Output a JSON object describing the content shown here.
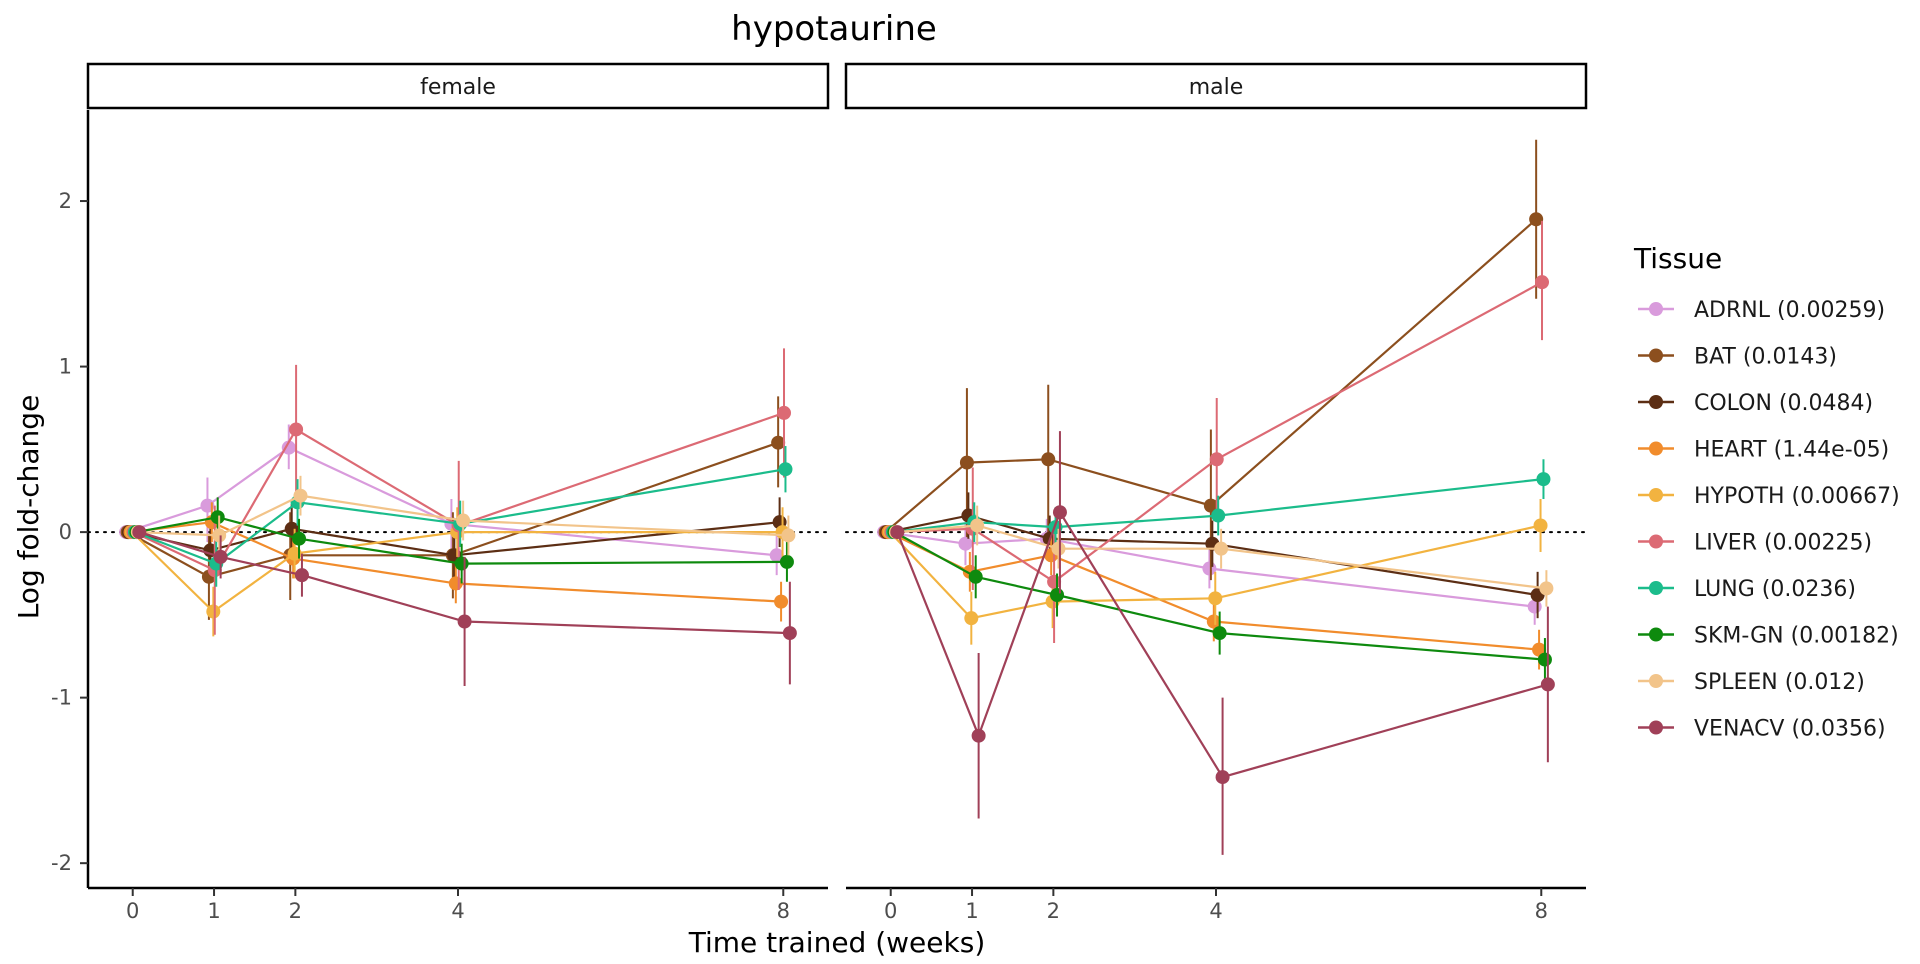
{
  "chart_data": {
    "type": "line",
    "title": "hypotaurine",
    "xlabel": "Time trained (weeks)",
    "ylabel": "Log fold-change",
    "x_ticks": [
      0,
      1,
      2,
      4,
      8
    ],
    "y_ticks": [
      -2,
      -1,
      0,
      1,
      2
    ],
    "xlim": [
      -0.55,
      8.55
    ],
    "ylim": [
      -2.15,
      2.55
    ],
    "reference_line": 0,
    "grid": false,
    "legend_title": "Tissue",
    "legend_position": "right",
    "series": [
      {
        "name": "ADRNL (0.00259)",
        "color": "#D99BDC",
        "female": [
          [
            0,
            0,
            0,
            0
          ],
          [
            1,
            0.16,
            -0.06,
            0.33
          ],
          [
            2,
            0.51,
            0.38,
            0.65
          ],
          [
            4,
            0.05,
            -0.1,
            0.2
          ],
          [
            8,
            -0.14,
            -0.26,
            -0.02
          ]
        ],
        "male": [
          [
            0,
            0,
            0,
            0
          ],
          [
            1,
            -0.07,
            -0.2,
            0.05
          ],
          [
            2,
            -0.04,
            -0.16,
            0.08
          ],
          [
            4,
            -0.22,
            -0.34,
            -0.1
          ],
          [
            8,
            -0.45,
            -0.56,
            -0.34
          ]
        ]
      },
      {
        "name": "BAT (0.0143)",
        "color": "#8C4F1E",
        "female": [
          [
            0,
            0,
            0,
            0
          ],
          [
            1,
            -0.27,
            -0.53,
            -0.02
          ],
          [
            2,
            -0.14,
            -0.41,
            0.12
          ],
          [
            4,
            -0.14,
            -0.4,
            0.12
          ],
          [
            8,
            0.54,
            0.27,
            0.82
          ]
        ],
        "male": [
          [
            0,
            0,
            0,
            0
          ],
          [
            1,
            0.42,
            -0.03,
            0.87
          ],
          [
            2,
            0.44,
            -0.02,
            0.89
          ],
          [
            4,
            0.16,
            -0.29,
            0.62
          ],
          [
            8,
            1.89,
            1.41,
            2.37
          ]
        ]
      },
      {
        "name": "COLON (0.0484)",
        "color": "#5C2E14",
        "female": [
          [
            0,
            0,
            0,
            0
          ],
          [
            1,
            -0.11,
            -0.25,
            0.03
          ],
          [
            2,
            0.02,
            -0.13,
            0.17
          ],
          [
            4,
            -0.14,
            -0.29,
            0.01
          ],
          [
            8,
            0.06,
            -0.09,
            0.21
          ]
        ],
        "male": [
          [
            0,
            0,
            0,
            0
          ],
          [
            1,
            0.1,
            -0.04,
            0.24
          ],
          [
            2,
            -0.04,
            -0.18,
            0.1
          ],
          [
            4,
            -0.07,
            -0.21,
            0.07
          ],
          [
            8,
            -0.38,
            -0.52,
            -0.24
          ]
        ]
      },
      {
        "name": "HEART (1.44e-05)",
        "color": "#F18C2C",
        "female": [
          [
            0,
            0,
            0,
            0
          ],
          [
            1,
            0.06,
            -0.06,
            0.18
          ],
          [
            2,
            -0.16,
            -0.28,
            -0.04
          ],
          [
            4,
            -0.31,
            -0.43,
            -0.19
          ],
          [
            8,
            -0.42,
            -0.54,
            -0.3
          ]
        ],
        "male": [
          [
            0,
            0,
            0,
            0
          ],
          [
            1,
            -0.24,
            -0.36,
            -0.12
          ],
          [
            2,
            -0.14,
            -0.26,
            -0.02
          ],
          [
            4,
            -0.54,
            -0.66,
            -0.42
          ],
          [
            8,
            -0.71,
            -0.83,
            -0.59
          ]
        ]
      },
      {
        "name": "HYPOTH (0.00667)",
        "color": "#F2B340",
        "female": [
          [
            0,
            0,
            0,
            0
          ],
          [
            1,
            -0.48,
            -0.63,
            -0.33
          ],
          [
            2,
            -0.13,
            -0.28,
            0.02
          ],
          [
            4,
            0.0,
            -0.15,
            0.15
          ],
          [
            8,
            0.0,
            -0.15,
            0.15
          ]
        ],
        "male": [
          [
            0,
            0,
            0,
            0
          ],
          [
            1,
            -0.52,
            -0.68,
            -0.36
          ],
          [
            2,
            -0.42,
            -0.58,
            -0.26
          ],
          [
            4,
            -0.4,
            -0.56,
            -0.24
          ],
          [
            8,
            0.04,
            -0.12,
            0.2
          ]
        ]
      },
      {
        "name": "LIVER (0.00225)",
        "color": "#DC6A74",
        "female": [
          [
            0,
            0,
            0,
            0
          ],
          [
            1,
            -0.23,
            -0.62,
            0.16
          ],
          [
            2,
            0.62,
            0.23,
            1.01
          ],
          [
            4,
            0.04,
            -0.35,
            0.43
          ],
          [
            8,
            0.72,
            0.33,
            1.11
          ]
        ],
        "male": [
          [
            0,
            0,
            0,
            0
          ],
          [
            1,
            0.02,
            -0.35,
            0.39
          ],
          [
            2,
            -0.3,
            -0.67,
            0.07
          ],
          [
            4,
            0.44,
            0.07,
            0.81
          ],
          [
            8,
            1.51,
            1.16,
            1.88
          ]
        ]
      },
      {
        "name": "LUNG (0.0236)",
        "color": "#1BBC8B",
        "female": [
          [
            0,
            0,
            0,
            0
          ],
          [
            1,
            -0.19,
            -0.33,
            -0.05
          ],
          [
            2,
            0.18,
            0.04,
            0.32
          ],
          [
            4,
            0.05,
            -0.09,
            0.19
          ],
          [
            8,
            0.38,
            0.24,
            0.52
          ]
        ],
        "male": [
          [
            0,
            0,
            0,
            0
          ],
          [
            1,
            0.06,
            -0.06,
            0.18
          ],
          [
            2,
            0.03,
            -0.09,
            0.15
          ],
          [
            4,
            0.1,
            -0.02,
            0.22
          ],
          [
            8,
            0.32,
            0.2,
            0.44
          ]
        ]
      },
      {
        "name": "SKM-GN (0.00182)",
        "color": "#0E8A0E",
        "female": [
          [
            0,
            0,
            0,
            0
          ],
          [
            1,
            0.09,
            -0.03,
            0.21
          ],
          [
            2,
            -0.04,
            -0.16,
            0.08
          ],
          [
            4,
            -0.19,
            -0.31,
            -0.07
          ],
          [
            8,
            -0.18,
            -0.3,
            -0.06
          ]
        ],
        "male": [
          [
            0,
            0,
            0,
            0
          ],
          [
            1,
            -0.27,
            -0.4,
            -0.14
          ],
          [
            2,
            -0.38,
            -0.51,
            -0.25
          ],
          [
            4,
            -0.61,
            -0.74,
            -0.48
          ],
          [
            8,
            -0.77,
            -0.9,
            -0.64
          ]
        ]
      },
      {
        "name": "SPLEEN (0.012)",
        "color": "#F2C48A",
        "female": [
          [
            0,
            0,
            0,
            0
          ],
          [
            1,
            -0.02,
            -0.14,
            0.1
          ],
          [
            2,
            0.22,
            0.1,
            0.34
          ],
          [
            4,
            0.07,
            -0.05,
            0.19
          ],
          [
            8,
            -0.02,
            -0.14,
            0.1
          ]
        ],
        "male": [
          [
            0,
            0,
            0,
            0
          ],
          [
            1,
            0.04,
            -0.08,
            0.16
          ],
          [
            2,
            -0.1,
            -0.22,
            0.02
          ],
          [
            4,
            -0.1,
            -0.22,
            0.02
          ],
          [
            8,
            -0.34,
            -0.45,
            -0.23
          ]
        ]
      },
      {
        "name": "VENACV (0.0356)",
        "color": "#A04058",
        "female": [
          [
            0,
            0,
            0,
            0
          ],
          [
            1,
            -0.15,
            -0.28,
            -0.02
          ],
          [
            2,
            -0.26,
            -0.39,
            -0.13
          ],
          [
            4,
            -0.54,
            -0.93,
            -0.15
          ],
          [
            8,
            -0.61,
            -0.92,
            -0.3
          ]
        ],
        "male": [
          [
            0,
            0,
            0,
            0
          ],
          [
            1,
            -1.23,
            -1.73,
            -0.73
          ],
          [
            2,
            0.12,
            -0.37,
            0.61
          ],
          [
            4,
            -1.48,
            -1.95,
            -1.0
          ],
          [
            8,
            -0.92,
            -1.39,
            -0.45
          ]
        ]
      }
    ]
  },
  "facets": [
    "female",
    "male"
  ]
}
